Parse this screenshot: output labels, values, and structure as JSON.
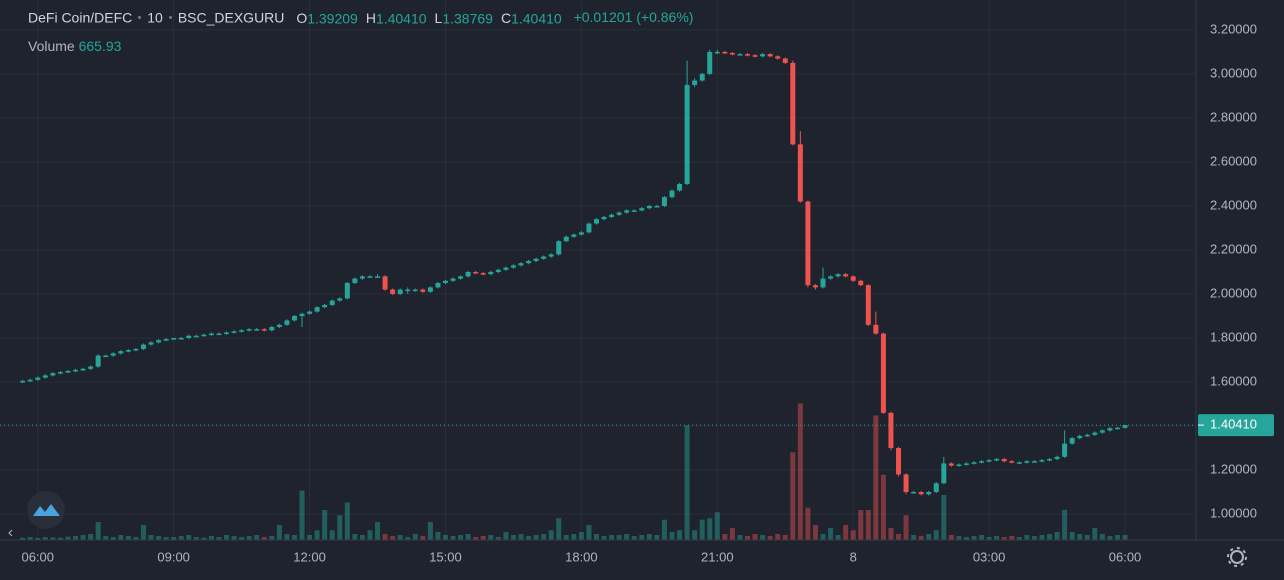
{
  "chart_data": {
    "type": "candlestick",
    "symbol": "DeFi Coin/DEFC",
    "interval": "10",
    "exchange": "BSC_DEXGURU",
    "ohlc_legend": [
      {
        "label": "O",
        "value": "1.39209"
      },
      {
        "label": "H",
        "value": "1.40410"
      },
      {
        "label": "L",
        "value": "1.38769"
      },
      {
        "label": "C",
        "value": "1.40410"
      }
    ],
    "change": "+0.01201 (+0.86%)",
    "volume_label": "Volume",
    "up_color": "#26a69a",
    "down_color": "#ef5350",
    "x": [
      340,
      350,
      360,
      370,
      380,
      390,
      400,
      410,
      420,
      430,
      440,
      450,
      460,
      470,
      480,
      490,
      500,
      510,
      520,
      530,
      540,
      550,
      560,
      570,
      580,
      590,
      600,
      610,
      620,
      630,
      640,
      650,
      660,
      670,
      680,
      690,
      700,
      710,
      720,
      730,
      740,
      750,
      760,
      770,
      780,
      790,
      800,
      810,
      820,
      830,
      840,
      850,
      860,
      870,
      880,
      890,
      900,
      910,
      920,
      930,
      940,
      950,
      960,
      970,
      980,
      990,
      1000,
      1010,
      1020,
      1030,
      1040,
      1050,
      1060,
      1070,
      1080,
      1090,
      1100,
      1110,
      1120,
      1130,
      1140,
      1150,
      1160,
      1170,
      1180,
      1190,
      1200,
      1210,
      1220,
      1230,
      1240,
      1250,
      1260,
      1270,
      1280,
      1290,
      1300,
      1310,
      1320,
      1330,
      1340,
      1350,
      1360,
      1370,
      1380,
      1390,
      1400,
      1410,
      1420,
      1430,
      1440,
      1450,
      1460,
      1470,
      1480,
      1490,
      1500,
      1510,
      1520,
      1530,
      1540,
      1550,
      1560,
      1570,
      1580,
      1590,
      1600,
      1610,
      1620,
      1630,
      1640,
      1650,
      1660,
      1670,
      1680,
      1690,
      1700,
      1710,
      1720,
      1730,
      1740,
      1750,
      1760,
      1770,
      1780,
      1790,
      1800
    ],
    "open": [
      1.6,
      1.605,
      1.61,
      1.62,
      1.63,
      1.64,
      1.645,
      1.65,
      1.655,
      1.66,
      1.67,
      1.72,
      1.72,
      1.73,
      1.74,
      1.745,
      1.75,
      1.77,
      1.78,
      1.79,
      1.795,
      1.8,
      1.8,
      1.81,
      1.81,
      1.815,
      1.82,
      1.82,
      1.825,
      1.83,
      1.835,
      1.84,
      1.84,
      1.835,
      1.85,
      1.86,
      1.88,
      1.9,
      1.91,
      1.92,
      1.94,
      1.95,
      1.97,
      1.98,
      2.05,
      2.07,
      2.08,
      2.08,
      2.08,
      2.02,
      2.0,
      2.02,
      2.02,
      2.02,
      2.01,
      2.03,
      2.05,
      2.06,
      2.07,
      2.08,
      2.1,
      2.095,
      2.09,
      2.1,
      2.11,
      2.12,
      2.13,
      2.14,
      2.15,
      2.16,
      2.17,
      2.18,
      2.24,
      2.26,
      2.27,
      2.28,
      2.32,
      2.34,
      2.35,
      2.36,
      2.37,
      2.38,
      2.38,
      2.39,
      2.4,
      2.4,
      2.44,
      2.47,
      2.5,
      2.95,
      2.97,
      3.0,
      3.1,
      3.1,
      3.095,
      3.09,
      3.09,
      3.085,
      3.08,
      3.09,
      3.08,
      3.07,
      3.05,
      2.68,
      2.42,
      2.04,
      2.03,
      2.07,
      2.08,
      2.09,
      2.08,
      2.06,
      2.04,
      1.86,
      1.82,
      1.46,
      1.3,
      1.18,
      1.1,
      1.1,
      1.09,
      1.1,
      1.14,
      1.23,
      1.22,
      1.225,
      1.23,
      1.235,
      1.24,
      1.245,
      1.25,
      1.24,
      1.235,
      1.235,
      1.24,
      1.24,
      1.245,
      1.25,
      1.26,
      1.32,
      1.345,
      1.355,
      1.36,
      1.37,
      1.38,
      1.39,
      1.39209
    ],
    "high": [
      1.61,
      1.615,
      1.625,
      1.635,
      1.645,
      1.65,
      1.655,
      1.66,
      1.665,
      1.675,
      1.725,
      1.725,
      1.735,
      1.745,
      1.75,
      1.755,
      1.775,
      1.785,
      1.795,
      1.8,
      1.8,
      1.805,
      1.815,
      1.815,
      1.82,
      1.825,
      1.825,
      1.83,
      1.835,
      1.84,
      1.845,
      1.845,
      1.845,
      1.855,
      1.865,
      1.885,
      1.905,
      1.915,
      1.925,
      1.945,
      1.955,
      1.975,
      1.985,
      2.055,
      2.075,
      2.085,
      2.085,
      2.09,
      2.085,
      2.025,
      2.025,
      2.03,
      2.025,
      2.025,
      2.035,
      2.055,
      2.065,
      2.075,
      2.085,
      2.105,
      2.105,
      2.1,
      2.105,
      2.115,
      2.125,
      2.135,
      2.145,
      2.155,
      2.165,
      2.175,
      2.185,
      2.245,
      2.265,
      2.275,
      2.285,
      2.325,
      2.345,
      2.355,
      2.365,
      2.375,
      2.385,
      2.385,
      2.395,
      2.405,
      2.405,
      2.445,
      2.475,
      2.505,
      3.06,
      2.98,
      3.005,
      3.11,
      3.11,
      3.105,
      3.1,
      3.095,
      3.095,
      3.09,
      3.095,
      3.095,
      3.085,
      3.075,
      3.06,
      2.74,
      2.425,
      2.045,
      2.12,
      2.085,
      2.095,
      2.095,
      2.085,
      2.065,
      2.045,
      1.92,
      1.825,
      1.465,
      1.305,
      1.185,
      1.105,
      1.105,
      1.105,
      1.145,
      1.26,
      1.235,
      1.23,
      1.235,
      1.24,
      1.245,
      1.25,
      1.255,
      1.255,
      1.245,
      1.24,
      1.245,
      1.245,
      1.25,
      1.255,
      1.265,
      1.38,
      1.35,
      1.36,
      1.365,
      1.375,
      1.385,
      1.395,
      1.395,
      1.4041
    ],
    "low": [
      1.595,
      1.6,
      1.605,
      1.615,
      1.625,
      1.635,
      1.64,
      1.645,
      1.65,
      1.655,
      1.665,
      1.715,
      1.715,
      1.725,
      1.735,
      1.74,
      1.745,
      1.765,
      1.775,
      1.785,
      1.79,
      1.795,
      1.795,
      1.805,
      1.805,
      1.81,
      1.815,
      1.815,
      1.82,
      1.825,
      1.83,
      1.835,
      1.83,
      1.83,
      1.845,
      1.855,
      1.875,
      1.85,
      1.905,
      1.915,
      1.935,
      1.945,
      1.965,
      1.975,
      2.045,
      2.065,
      2.075,
      2.075,
      2.015,
      1.995,
      1.995,
      2.0,
      2.01,
      2.005,
      2.005,
      2.025,
      2.045,
      2.055,
      2.065,
      2.075,
      2.09,
      2.085,
      2.085,
      2.095,
      2.105,
      2.115,
      2.125,
      2.135,
      2.145,
      2.155,
      2.165,
      2.175,
      2.235,
      2.255,
      2.265,
      2.275,
      2.315,
      2.335,
      2.345,
      2.355,
      2.365,
      2.375,
      2.375,
      2.385,
      2.395,
      2.395,
      2.435,
      2.465,
      2.495,
      2.94,
      2.965,
      2.995,
      3.09,
      3.09,
      3.085,
      3.085,
      3.08,
      3.075,
      3.075,
      3.075,
      3.065,
      3.045,
      2.675,
      2.415,
      2.03,
      2.02,
      2.025,
      2.065,
      2.075,
      2.075,
      2.055,
      2.035,
      1.855,
      1.815,
      1.455,
      1.29,
      1.17,
      1.09,
      1.095,
      1.085,
      1.085,
      1.095,
      1.135,
      1.215,
      1.215,
      1.22,
      1.225,
      1.23,
      1.235,
      1.24,
      1.235,
      1.23,
      1.23,
      1.23,
      1.235,
      1.235,
      1.24,
      1.245,
      1.255,
      1.315,
      1.34,
      1.35,
      1.355,
      1.365,
      1.375,
      1.385,
      1.38769
    ],
    "close": [
      1.605,
      1.61,
      1.62,
      1.63,
      1.64,
      1.645,
      1.65,
      1.655,
      1.66,
      1.67,
      1.72,
      1.72,
      1.73,
      1.74,
      1.745,
      1.75,
      1.77,
      1.78,
      1.79,
      1.795,
      1.8,
      1.8,
      1.81,
      1.81,
      1.815,
      1.82,
      1.82,
      1.825,
      1.83,
      1.835,
      1.84,
      1.84,
      1.835,
      1.85,
      1.86,
      1.88,
      1.9,
      1.91,
      1.92,
      1.94,
      1.95,
      1.97,
      1.98,
      2.05,
      2.07,
      2.08,
      2.08,
      2.08,
      2.02,
      2.0,
      2.02,
      2.02,
      2.02,
      2.01,
      2.03,
      2.05,
      2.06,
      2.07,
      2.08,
      2.1,
      2.095,
      2.09,
      2.1,
      2.11,
      2.12,
      2.13,
      2.14,
      2.15,
      2.16,
      2.17,
      2.18,
      2.24,
      2.26,
      2.27,
      2.28,
      2.32,
      2.34,
      2.35,
      2.36,
      2.37,
      2.38,
      2.38,
      2.39,
      2.4,
      2.4,
      2.44,
      2.47,
      2.5,
      2.95,
      2.97,
      3.0,
      3.1,
      3.1,
      3.095,
      3.09,
      3.09,
      3.085,
      3.08,
      3.09,
      3.08,
      3.07,
      3.05,
      2.68,
      2.42,
      2.04,
      2.03,
      2.07,
      2.08,
      2.09,
      2.08,
      2.06,
      2.04,
      1.86,
      1.82,
      1.46,
      1.3,
      1.18,
      1.1,
      1.1,
      1.09,
      1.1,
      1.14,
      1.23,
      1.22,
      1.225,
      1.23,
      1.235,
      1.24,
      1.245,
      1.25,
      1.24,
      1.235,
      1.235,
      1.24,
      1.24,
      1.245,
      1.25,
      1.26,
      1.32,
      1.345,
      1.355,
      1.36,
      1.37,
      1.38,
      1.39,
      1.39209,
      1.4041
    ],
    "volume": [
      300,
      400,
      270,
      400,
      350,
      300,
      450,
      530,
      670,
      800,
      2400,
      530,
      400,
      670,
      530,
      400,
      2000,
      670,
      530,
      400,
      400,
      530,
      670,
      400,
      300,
      530,
      400,
      670,
      530,
      400,
      530,
      670,
      400,
      530,
      2000,
      800,
      670,
      6600,
      670,
      1300,
      4000,
      1300,
      3300,
      5000,
      800,
      670,
      1300,
      2400,
      800,
      530,
      670,
      400,
      800,
      530,
      2400,
      1070,
      670,
      530,
      670,
      800,
      400,
      530,
      670,
      400,
      1070,
      670,
      800,
      530,
      670,
      800,
      1300,
      2900,
      670,
      800,
      1070,
      2000,
      800,
      530,
      670,
      670,
      800,
      530,
      670,
      800,
      670,
      2700,
      1070,
      1300,
      15300,
      1300,
      2700,
      2900,
      3700,
      800,
      1600,
      670,
      530,
      800,
      670,
      530,
      800,
      670,
      11700,
      18200,
      4300,
      2000,
      800,
      1600,
      670,
      2000,
      1300,
      4000,
      4000,
      16600,
      8700,
      1600,
      800,
      3300,
      670,
      530,
      800,
      1300,
      6000,
      670,
      530,
      400,
      530,
      670,
      400,
      530,
      400,
      530,
      400,
      670,
      530,
      670,
      800,
      1070,
      4000,
      1070,
      800,
      670,
      1600,
      800,
      530,
      670,
      665.93
    ],
    "volume_lim": [
      0,
      20000
    ],
    "xlim": [
      310,
      1894
    ],
    "ylim": [
      0.882,
      3.336
    ],
    "xticks": [
      {
        "value": 360,
        "label": "06:00"
      },
      {
        "value": 540,
        "label": "09:00"
      },
      {
        "value": 720,
        "label": "12:00"
      },
      {
        "value": 900,
        "label": "15:00"
      },
      {
        "value": 1080,
        "label": "18:00"
      },
      {
        "value": 1260,
        "label": "21:00"
      },
      {
        "value": 1440,
        "label": "8"
      },
      {
        "value": 1620,
        "label": "03:00"
      },
      {
        "value": 1800,
        "label": "06:00"
      }
    ],
    "yticks": [
      {
        "value": 1.0,
        "label": "1.00000"
      },
      {
        "value": 1.2,
        "label": "1.20000"
      },
      {
        "value": 1.4,
        "label": "1.40000"
      },
      {
        "value": 1.6,
        "label": "1.60000"
      },
      {
        "value": 1.8,
        "label": "1.80000"
      },
      {
        "value": 2.0,
        "label": "2.00000"
      },
      {
        "value": 2.2,
        "label": "2.20000"
      },
      {
        "value": 2.4,
        "label": "2.40000"
      },
      {
        "value": 2.6,
        "label": "2.60000"
      },
      {
        "value": 2.8,
        "label": "2.80000"
      },
      {
        "value": 3.0,
        "label": "3.00000"
      },
      {
        "value": 3.2,
        "label": "3.20000"
      }
    ],
    "grid": true,
    "last_price": {
      "value": 1.4041,
      "label": "1.40410"
    }
  }
}
